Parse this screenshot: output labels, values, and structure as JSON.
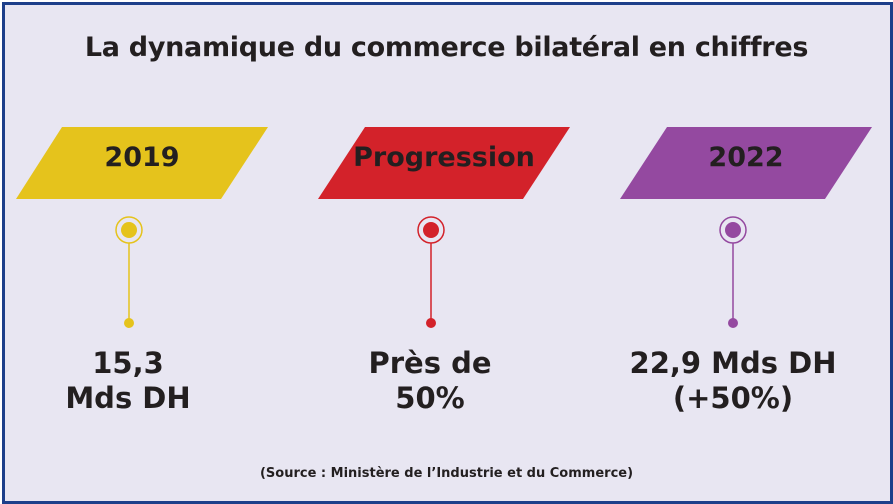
{
  "title": "La dynamique du commerce bilatéral en chiffres",
  "columns": [
    {
      "label": "2019",
      "value_line1": "15,3",
      "value_line2": "Mds DH",
      "color": "#e5c31c"
    },
    {
      "label": "Progression",
      "value_line1": "Près de",
      "value_line2": "50%",
      "color": "#d3222a"
    },
    {
      "label": "2022",
      "value_line1": "22,9 Mds DH",
      "value_line2": "(+50%)",
      "color": "#9449a0"
    }
  ],
  "source": "(Source : Ministère de l’Industrie et du Commerce)",
  "colors": {
    "background": "#e8e6f2",
    "border": "#1d3f8a",
    "text": "#231f20"
  }
}
